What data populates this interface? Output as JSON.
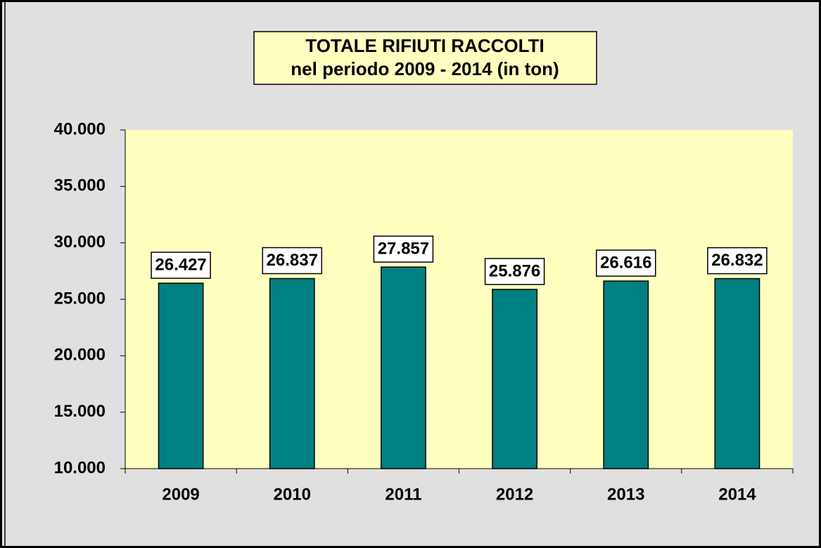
{
  "chart_data": {
    "type": "bar",
    "title": "TOTALE RIFIUTI RACCOLTI",
    "subtitle": "nel periodo 2009 - 2014 (in ton)",
    "categories": [
      "2009",
      "2010",
      "2011",
      "2012",
      "2013",
      "2014"
    ],
    "values": [
      26427,
      26837,
      27857,
      25876,
      26616,
      26832
    ],
    "value_labels": [
      "26.427",
      "26.837",
      "27.857",
      "25.876",
      "26.616",
      "26.832"
    ],
    "color": "#008080",
    "ylim": [
      10000,
      40000
    ],
    "yticks": [
      {
        "value": 10000,
        "label": "10.000"
      },
      {
        "value": 15000,
        "label": "15.000"
      },
      {
        "value": 20000,
        "label": "20.000"
      },
      {
        "value": 25000,
        "label": "25.000"
      },
      {
        "value": 30000,
        "label": "30.000"
      },
      {
        "value": 35000,
        "label": "35.000"
      },
      {
        "value": 40000,
        "label": "40.000"
      }
    ],
    "grid": false
  }
}
